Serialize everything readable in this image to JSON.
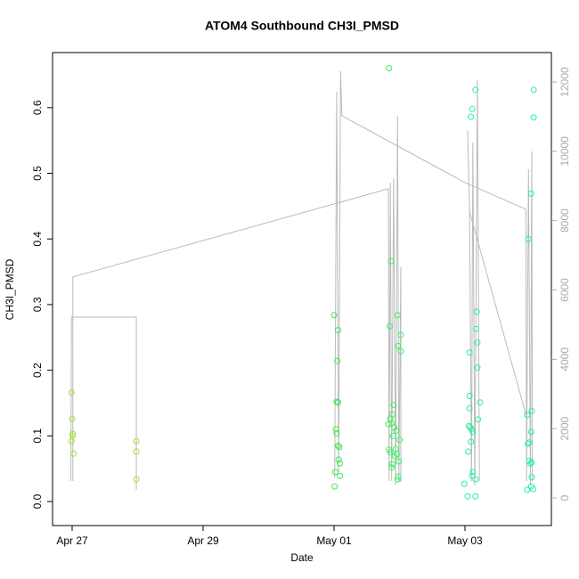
{
  "chart_data": {
    "type": "scatter",
    "title": "ATOM4 Southbound CH3I_PMSD",
    "x_label": "Date",
    "y_label": "CH3I_PMSD",
    "xlim": [
      -0.2993,
      7.3197
    ],
    "xticks": [
      {
        "value": 0,
        "label": "Apr 27"
      },
      {
        "value": 2,
        "label": "Apr 29"
      },
      {
        "value": 4,
        "label": "May 01"
      },
      {
        "value": 6,
        "label": "May 03"
      }
    ],
    "ylim": [
      -0.0366,
      0.6839
    ],
    "yticks": [
      {
        "value": 0,
        "label": "0.0"
      },
      0.1,
      0.2,
      0.3,
      0.4,
      0.5,
      0.6
    ],
    "y2lim": [
      -797,
      12848
    ],
    "y2ticks": [
      0,
      2000,
      4000,
      6000,
      8000,
      10000,
      12000
    ],
    "series": [
      {
        "color": "#9fe22e",
        "x": [
          -0.01,
          0,
          0.01,
          0.01,
          -0.01,
          0.02
        ],
        "values": [
          0.166,
          0.126,
          0.103,
          0.1,
          0.092,
          0.073
        ]
      },
      {
        "color": "#a0e030",
        "x": [
          0.98,
          0.98,
          0.98
        ],
        "values": [
          0.092,
          0.076,
          0.034
        ]
      },
      {
        "color": "#3ee84a",
        "x": [
          4.0,
          4.06,
          4.05,
          4.04,
          4.06,
          4.03,
          4.04,
          4.06,
          4.08,
          4.07,
          4.09,
          4.02,
          4.09,
          4.01
        ],
        "values": [
          0.284,
          0.261,
          0.214,
          0.152,
          0.151,
          0.11,
          0.104,
          0.085,
          0.083,
          0.064,
          0.058,
          0.045,
          0.039,
          0.023
        ]
      },
      {
        "color": "#3ef060",
        "x": [
          4.84,
          4.87,
          4.85,
          4.97,
          5.02,
          4.98,
          5.02,
          4.91,
          4.89,
          4.86,
          4.88,
          4.83,
          4.92,
          4.95,
          4.9,
          5.0,
          4.94,
          4.84,
          4.86,
          4.96,
          4.93,
          4.99,
          4.89,
          4.88,
          4.98,
          4.97
        ],
        "values": [
          0.66,
          0.366,
          0.267,
          0.284,
          0.254,
          0.237,
          0.229,
          0.147,
          0.133,
          0.126,
          0.119,
          0.118,
          0.113,
          0.108,
          0.1,
          0.094,
          0.08,
          0.079,
          0.075,
          0.072,
          0.069,
          0.061,
          0.057,
          0.052,
          0.038,
          0.034
        ]
      },
      {
        "color": "#2aeea0",
        "x": [
          6.16,
          6.11,
          6.09,
          6.18,
          6.17,
          6.19,
          6.07,
          6.19,
          6.07,
          6.23,
          6.07,
          6.2,
          6.06,
          6.08,
          6.1,
          6.12,
          6.09,
          6.05,
          6.12,
          6.11,
          6.16,
          5.99,
          6.04,
          6.16
        ],
        "values": [
          0.627,
          0.598,
          0.586,
          0.289,
          0.263,
          0.242,
          0.227,
          0.204,
          0.161,
          0.151,
          0.142,
          0.125,
          0.115,
          0.113,
          0.11,
          0.106,
          0.091,
          0.076,
          0.045,
          0.039,
          0.034,
          0.027,
          0.008,
          0.008
        ]
      },
      {
        "color": "#22eeb0",
        "x": [
          7.05,
          7.05,
          7.01,
          6.97,
          7.02,
          6.95,
          7.01,
          6.98,
          6.96,
          6.98,
          7.02,
          7.0,
          7.02,
          7.01,
          7.04,
          6.95
        ],
        "values": [
          0.627,
          0.585,
          0.469,
          0.4,
          0.138,
          0.132,
          0.106,
          0.09,
          0.088,
          0.062,
          0.06,
          0.058,
          0.037,
          0.023,
          0.019,
          0.018
        ]
      },
      {
        "type": "line",
        "axis": "y2",
        "color": "#bbbbbb",
        "x": [
          -0.02,
          -0.01,
          0.98,
          0.98,
          null,
          0.01,
          0.01,
          4.83,
          4.84,
          4.86,
          4.88,
          4.91,
          4.94,
          4.97,
          4.99,
          5.02,
          5.02,
          null,
          4.01,
          4.04,
          4.07,
          4.1,
          4.12,
          6.0,
          6.93,
          6.94,
          6.97,
          7.0,
          7.02,
          7.03,
          null,
          6.04,
          6.07,
          6.1,
          6.12,
          6.15,
          6.19,
          6.22,
          null,
          6.06,
          6.93
        ],
        "values": [
          488,
          5217,
          5217,
          231,
          null,
          488,
          6374,
          8918,
          488,
          9098,
          488,
          9226,
          360,
          11025,
          488,
          6656,
          463,
          null,
          565,
          11719,
          745,
          12310,
          11025,
          9098,
          8327,
          488,
          9483,
          360,
          9997,
          488,
          null,
          10588,
          8327,
          488,
          10254,
          360,
          12053,
          488,
          null,
          8327,
          2416
        ]
      }
    ]
  }
}
